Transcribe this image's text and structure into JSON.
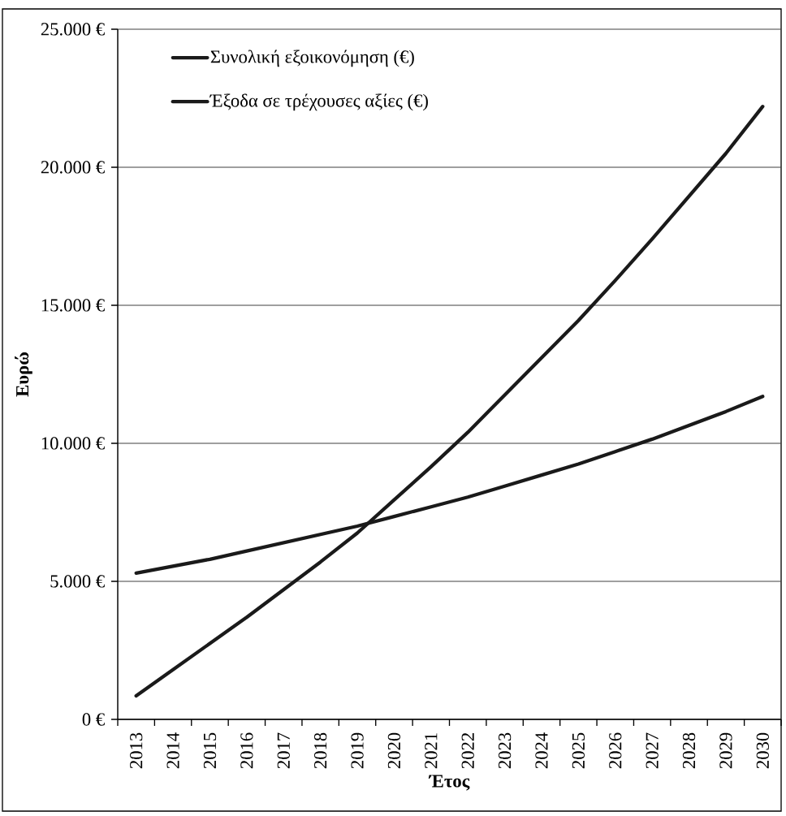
{
  "chart_data": {
    "type": "line",
    "xlabel": "Έτος",
    "ylabel": "Ευρώ",
    "categories": [
      "2013",
      "2014",
      "2015",
      "2016",
      "2017",
      "2018",
      "2019",
      "2020",
      "2021",
      "2022",
      "2023",
      "2024",
      "2025",
      "2026",
      "2027",
      "2028",
      "2029",
      "2030"
    ],
    "series": [
      {
        "name": "Συνολική εξοικονόμηση (€)",
        "color": "#1a1a1a",
        "values": [
          850,
          1800,
          2750,
          3700,
          4700,
          5700,
          6750,
          7950,
          9150,
          10400,
          11750,
          13100,
          14450,
          15900,
          17400,
          18950,
          20500,
          22200
        ]
      },
      {
        "name": "Έξοδα σε τρέχουσες αξίες (€)",
        "color": "#1a1a1a",
        "values": [
          5300,
          5550,
          5800,
          6100,
          6400,
          6700,
          7000,
          7350,
          7700,
          8050,
          8450,
          8850,
          9250,
          9700,
          10150,
          10650,
          11150,
          11700
        ]
      }
    ],
    "ylim": [
      0,
      25000
    ],
    "yticks": [
      {
        "value": 0,
        "label": "0 €"
      },
      {
        "value": 5000,
        "label": "5.000 €"
      },
      {
        "value": 10000,
        "label": "10.000 €"
      },
      {
        "value": 15000,
        "label": "15.000 €"
      },
      {
        "value": 20000,
        "label": "20.000 €"
      },
      {
        "value": 25000,
        "label": "25.000 €"
      }
    ],
    "grid": "y",
    "legend": "top left",
    "marker": "none",
    "line_style": "solid"
  }
}
